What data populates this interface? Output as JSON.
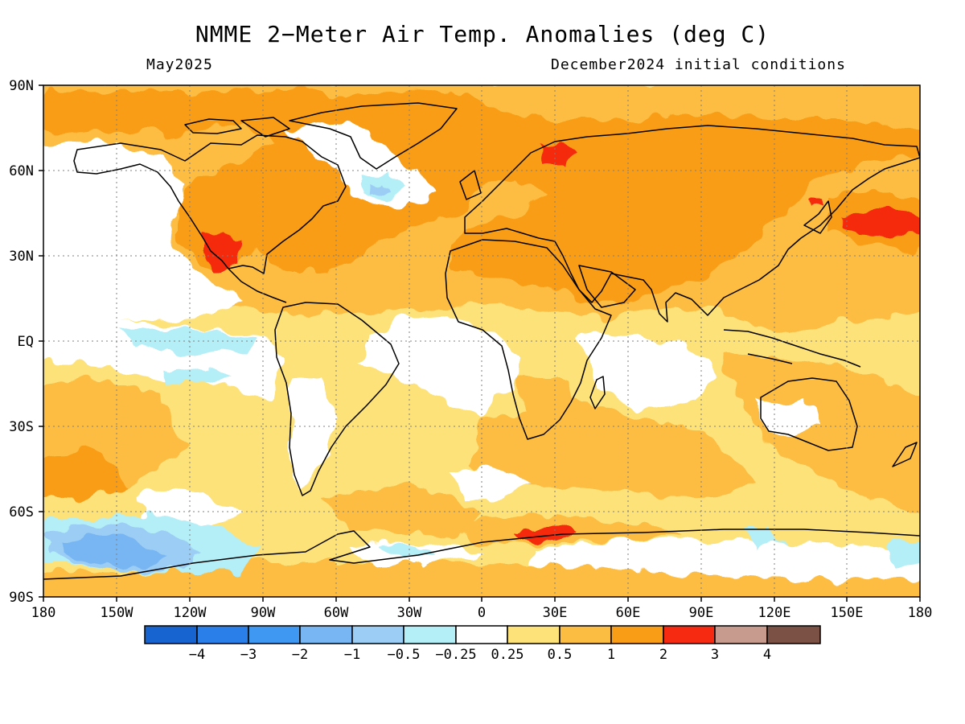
{
  "title": "NMME 2−Meter Air Temp. Anomalies (deg C)",
  "subtitle_left": "May2025",
  "subtitle_right": "December2024 initial conditions",
  "lat_ticks": [
    "90N",
    "60N",
    "30N",
    "EQ",
    "30S",
    "60S",
    "90S"
  ],
  "lon_ticks": [
    "180",
    "150W",
    "120W",
    "90W",
    "60W",
    "30W",
    "0",
    "30E",
    "60E",
    "90E",
    "120E",
    "150E",
    "180"
  ],
  "colorbar": {
    "colors": [
      "#1764d0",
      "#2a80e8",
      "#3f98f2",
      "#78b6f3",
      "#9ccdf5",
      "#b4eef7",
      "#ffffff",
      "#fde27a",
      "#fcbd43",
      "#fa9d16",
      "#f52a10",
      "#c79b8d",
      "#7a5144"
    ],
    "labels": [
      "−4",
      "−3",
      "−2",
      "−1",
      "−0.5",
      "−0.25",
      "0.25",
      "0.5",
      "1",
      "2",
      "3",
      "4"
    ]
  }
}
